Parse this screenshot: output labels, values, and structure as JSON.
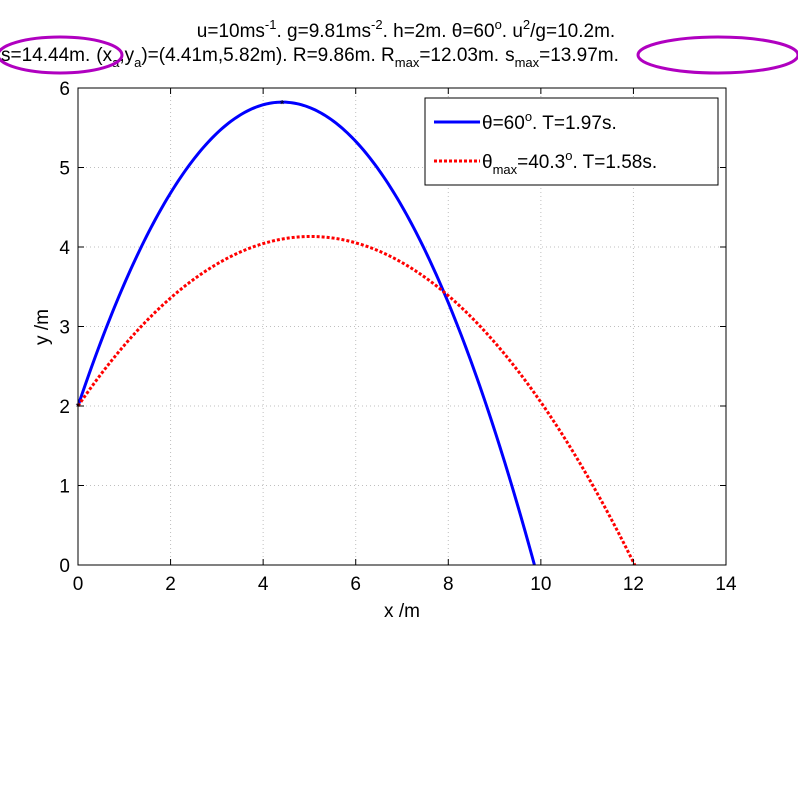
{
  "title": {
    "line1_parts": [
      "u=10ms",
      "-1",
      ". g=9.81ms",
      "-2",
      ". h=2m. ",
      "θ",
      "=60",
      "o",
      ". u",
      "2",
      "/g=10.2m."
    ],
    "s_text": "s=14.44m.",
    "xa_text": "(x",
    "xa_sub": "a",
    "ya_text": ",y",
    "ya_sub": "a",
    "coords_text": ")=(4.41m,5.82m). R=9.86m. R",
    "rmax_sub": "max",
    "rmax_val": "=12.03m.",
    "smax_s": "s",
    "smax_sub": "max",
    "smax_val": "=13.97m."
  },
  "legend": {
    "entry1": {
      "theta": "θ",
      "text": "=60",
      "sup": "o",
      "rest": ". T=1.97s."
    },
    "entry2": {
      "theta": "θ",
      "sub": "max",
      "text": "=40.3",
      "sup": "o",
      "rest": ". T=1.58s."
    }
  },
  "colors": {
    "series1": "#0000ff",
    "series2": "#ff0000",
    "highlight_ellipse": "#b000c0",
    "grid": "#bfbfbf"
  },
  "chart_data": {
    "type": "line",
    "xlabel": "x /m",
    "ylabel": "y /m",
    "xlim": [
      0,
      14
    ],
    "ylim": [
      0,
      6
    ],
    "xticks": [
      "0",
      "2",
      "4",
      "6",
      "8",
      "10",
      "12",
      "14"
    ],
    "yticks": [
      "0",
      "1",
      "2",
      "3",
      "4",
      "5",
      "6"
    ],
    "grid": true,
    "legend_position": "top-right",
    "series": [
      {
        "label_parts": [
          "θ=60°. T=1.97s."
        ],
        "style": "solid",
        "launch_speed": 10,
        "angle_deg": 60,
        "g": 9.81,
        "h": 2,
        "x_end": 9.86,
        "apex": [
          4.41,
          5.82
        ]
      },
      {
        "label_parts": [
          "θmax=40.3°. T=1.58s."
        ],
        "style": "dotted",
        "launch_speed": 10,
        "angle_deg": 40.3,
        "g": 9.81,
        "h": 2,
        "x_end": 12.03
      }
    ]
  }
}
